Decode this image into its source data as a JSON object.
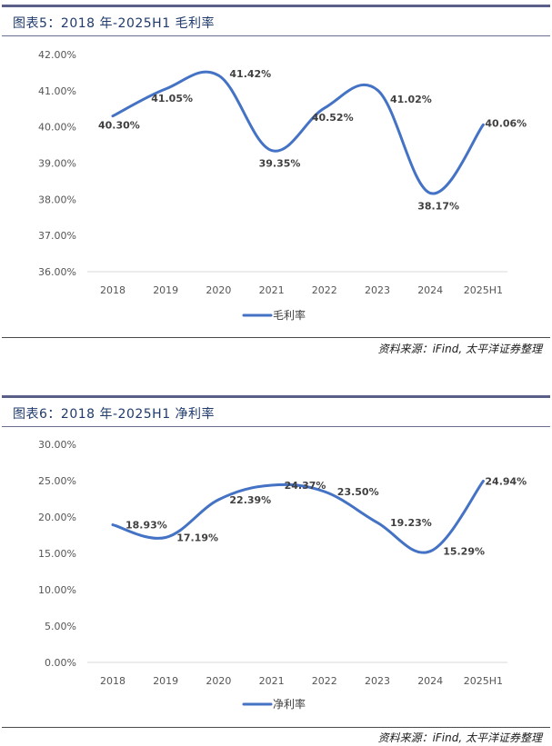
{
  "colors": {
    "line": "#4472c4",
    "axis": "#d9d9d9",
    "frame": "#5a5f8a"
  },
  "source_text": "资料来源：iFind, 太平洋证券整理",
  "chart_data": [
    {
      "type": "line",
      "title": "图表5：2018 年-2025H1 毛利率",
      "categories": [
        "2018",
        "2019",
        "2020",
        "2021",
        "2022",
        "2023",
        "2024",
        "2025H1"
      ],
      "series": [
        {
          "name": "毛利率",
          "values": [
            40.3,
            41.05,
            41.42,
            39.35,
            40.52,
            41.02,
            38.17,
            40.06
          ]
        }
      ],
      "data_labels": [
        "40.30%",
        "41.05%",
        "41.42%",
        "39.35%",
        "40.52%",
        "41.02%",
        "38.17%",
        "40.06%"
      ],
      "yticks": [
        "42.00%",
        "41.00%",
        "40.00%",
        "39.00%",
        "38.00%",
        "37.00%",
        "36.00%"
      ],
      "ylim": [
        36,
        42
      ],
      "xlabel": "",
      "ylabel": "",
      "legend": "bottom"
    },
    {
      "type": "line",
      "title": "图表6：2018 年-2025H1 净利率",
      "categories": [
        "2018",
        "2019",
        "2020",
        "2021",
        "2022",
        "2023",
        "2024",
        "2025H1"
      ],
      "series": [
        {
          "name": "净利率",
          "values": [
            18.93,
            17.19,
            22.39,
            24.37,
            23.5,
            19.23,
            15.29,
            24.94
          ]
        }
      ],
      "data_labels": [
        "18.93%",
        "17.19%",
        "22.39%",
        "24.37%",
        "23.50%",
        "19.23%",
        "15.29%",
        "24.94%"
      ],
      "yticks": [
        "30.00%",
        "25.00%",
        "20.00%",
        "15.00%",
        "10.00%",
        "5.00%",
        "0.00%"
      ],
      "ylim": [
        0,
        30
      ],
      "xlabel": "",
      "ylabel": "",
      "legend": "bottom"
    }
  ]
}
